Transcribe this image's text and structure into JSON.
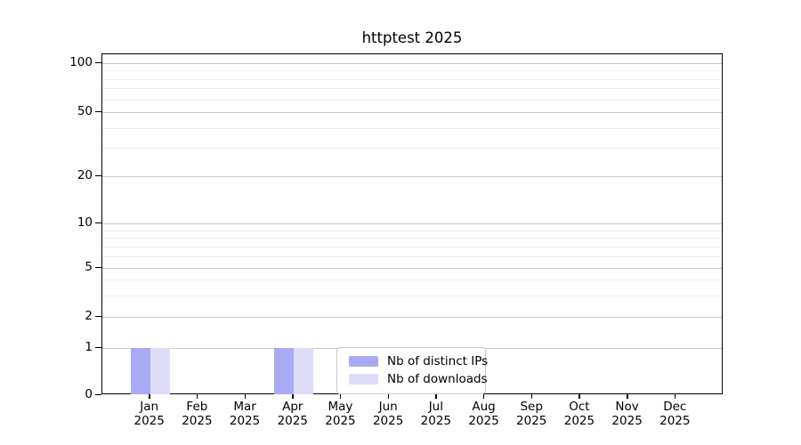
{
  "chart_data": {
    "type": "bar",
    "title": "httptest 2025",
    "categories": [
      {
        "month": "Jan",
        "year": "2025"
      },
      {
        "month": "Feb",
        "year": "2025"
      },
      {
        "month": "Mar",
        "year": "2025"
      },
      {
        "month": "Apr",
        "year": "2025"
      },
      {
        "month": "May",
        "year": "2025"
      },
      {
        "month": "Jun",
        "year": "2025"
      },
      {
        "month": "Jul",
        "year": "2025"
      },
      {
        "month": "Aug",
        "year": "2025"
      },
      {
        "month": "Sep",
        "year": "2025"
      },
      {
        "month": "Oct",
        "year": "2025"
      },
      {
        "month": "Nov",
        "year": "2025"
      },
      {
        "month": "Dec",
        "year": "2025"
      }
    ],
    "series": [
      {
        "name": "Nb of distinct IPs",
        "color": "#a9a9f4",
        "values": [
          1,
          0,
          0,
          1,
          0,
          0,
          0,
          0,
          0,
          0,
          0,
          0
        ]
      },
      {
        "name": "Nb of downloads",
        "color": "#dcdcf7",
        "values": [
          1,
          0,
          0,
          1,
          0,
          0,
          0,
          0,
          0,
          0,
          0,
          0
        ]
      }
    ],
    "y_axis": {
      "scale": "log-like",
      "tick_values": [
        0,
        1,
        2,
        5,
        10,
        20,
        50,
        100
      ],
      "tick_labels": [
        "0",
        "1",
        "2",
        "5",
        "10",
        "20",
        "50",
        "100"
      ],
      "minor_gridline_values": [
        3,
        4,
        6,
        7,
        8,
        9,
        30,
        40,
        60,
        70,
        80,
        90
      ],
      "ylim": [
        0,
        110
      ]
    },
    "legend": {
      "position": "lower center inside",
      "entries": [
        "Nb of distinct IPs",
        "Nb of downloads"
      ]
    },
    "grid": "horizontal",
    "colors": {
      "background": "#ffffff",
      "axis": "#000000",
      "major_gridline": "#c9c9c9",
      "minor_gridline": "#ededed",
      "legend_border": "#c9c9c9",
      "text": "#000000"
    }
  }
}
